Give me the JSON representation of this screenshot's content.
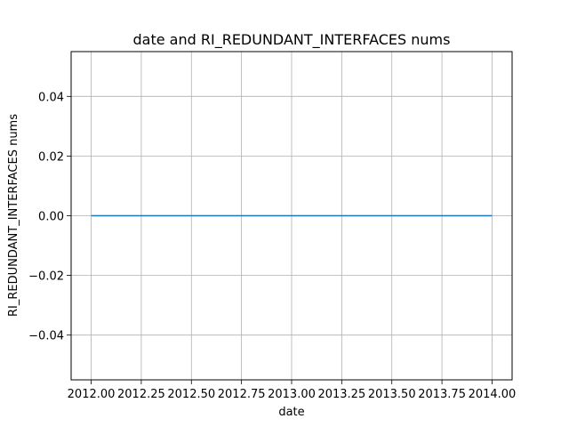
{
  "chart_data": {
    "type": "line",
    "title": "date and RI_REDUNDANT_INTERFACES nums",
    "xlabel": "date",
    "ylabel": "RI_REDUNDANT_INTERFACES nums",
    "xlim": [
      1991.9,
      2014.1
    ],
    "ylim": [
      -0.055,
      0.055
    ],
    "x_ticks": [
      2012.0,
      2012.25,
      2012.5,
      2012.75,
      2013.0,
      2013.25,
      2013.5,
      2013.75,
      2014.0
    ],
    "x_tick_labels": [
      "2012.00",
      "2012.25",
      "2012.50",
      "2012.75",
      "2013.00",
      "2013.25",
      "2013.50",
      "2013.75",
      "2014.00"
    ],
    "y_ticks": [
      -0.04,
      -0.02,
      0.0,
      0.02,
      0.04
    ],
    "y_tick_labels": [
      "−0.04",
      "−0.02",
      "0.00",
      "0.02",
      "0.04"
    ],
    "grid": true,
    "series": [
      {
        "color": "#1f77b4",
        "x": [
          2012.0,
          2014.0
        ],
        "y": [
          0,
          0
        ]
      }
    ]
  }
}
